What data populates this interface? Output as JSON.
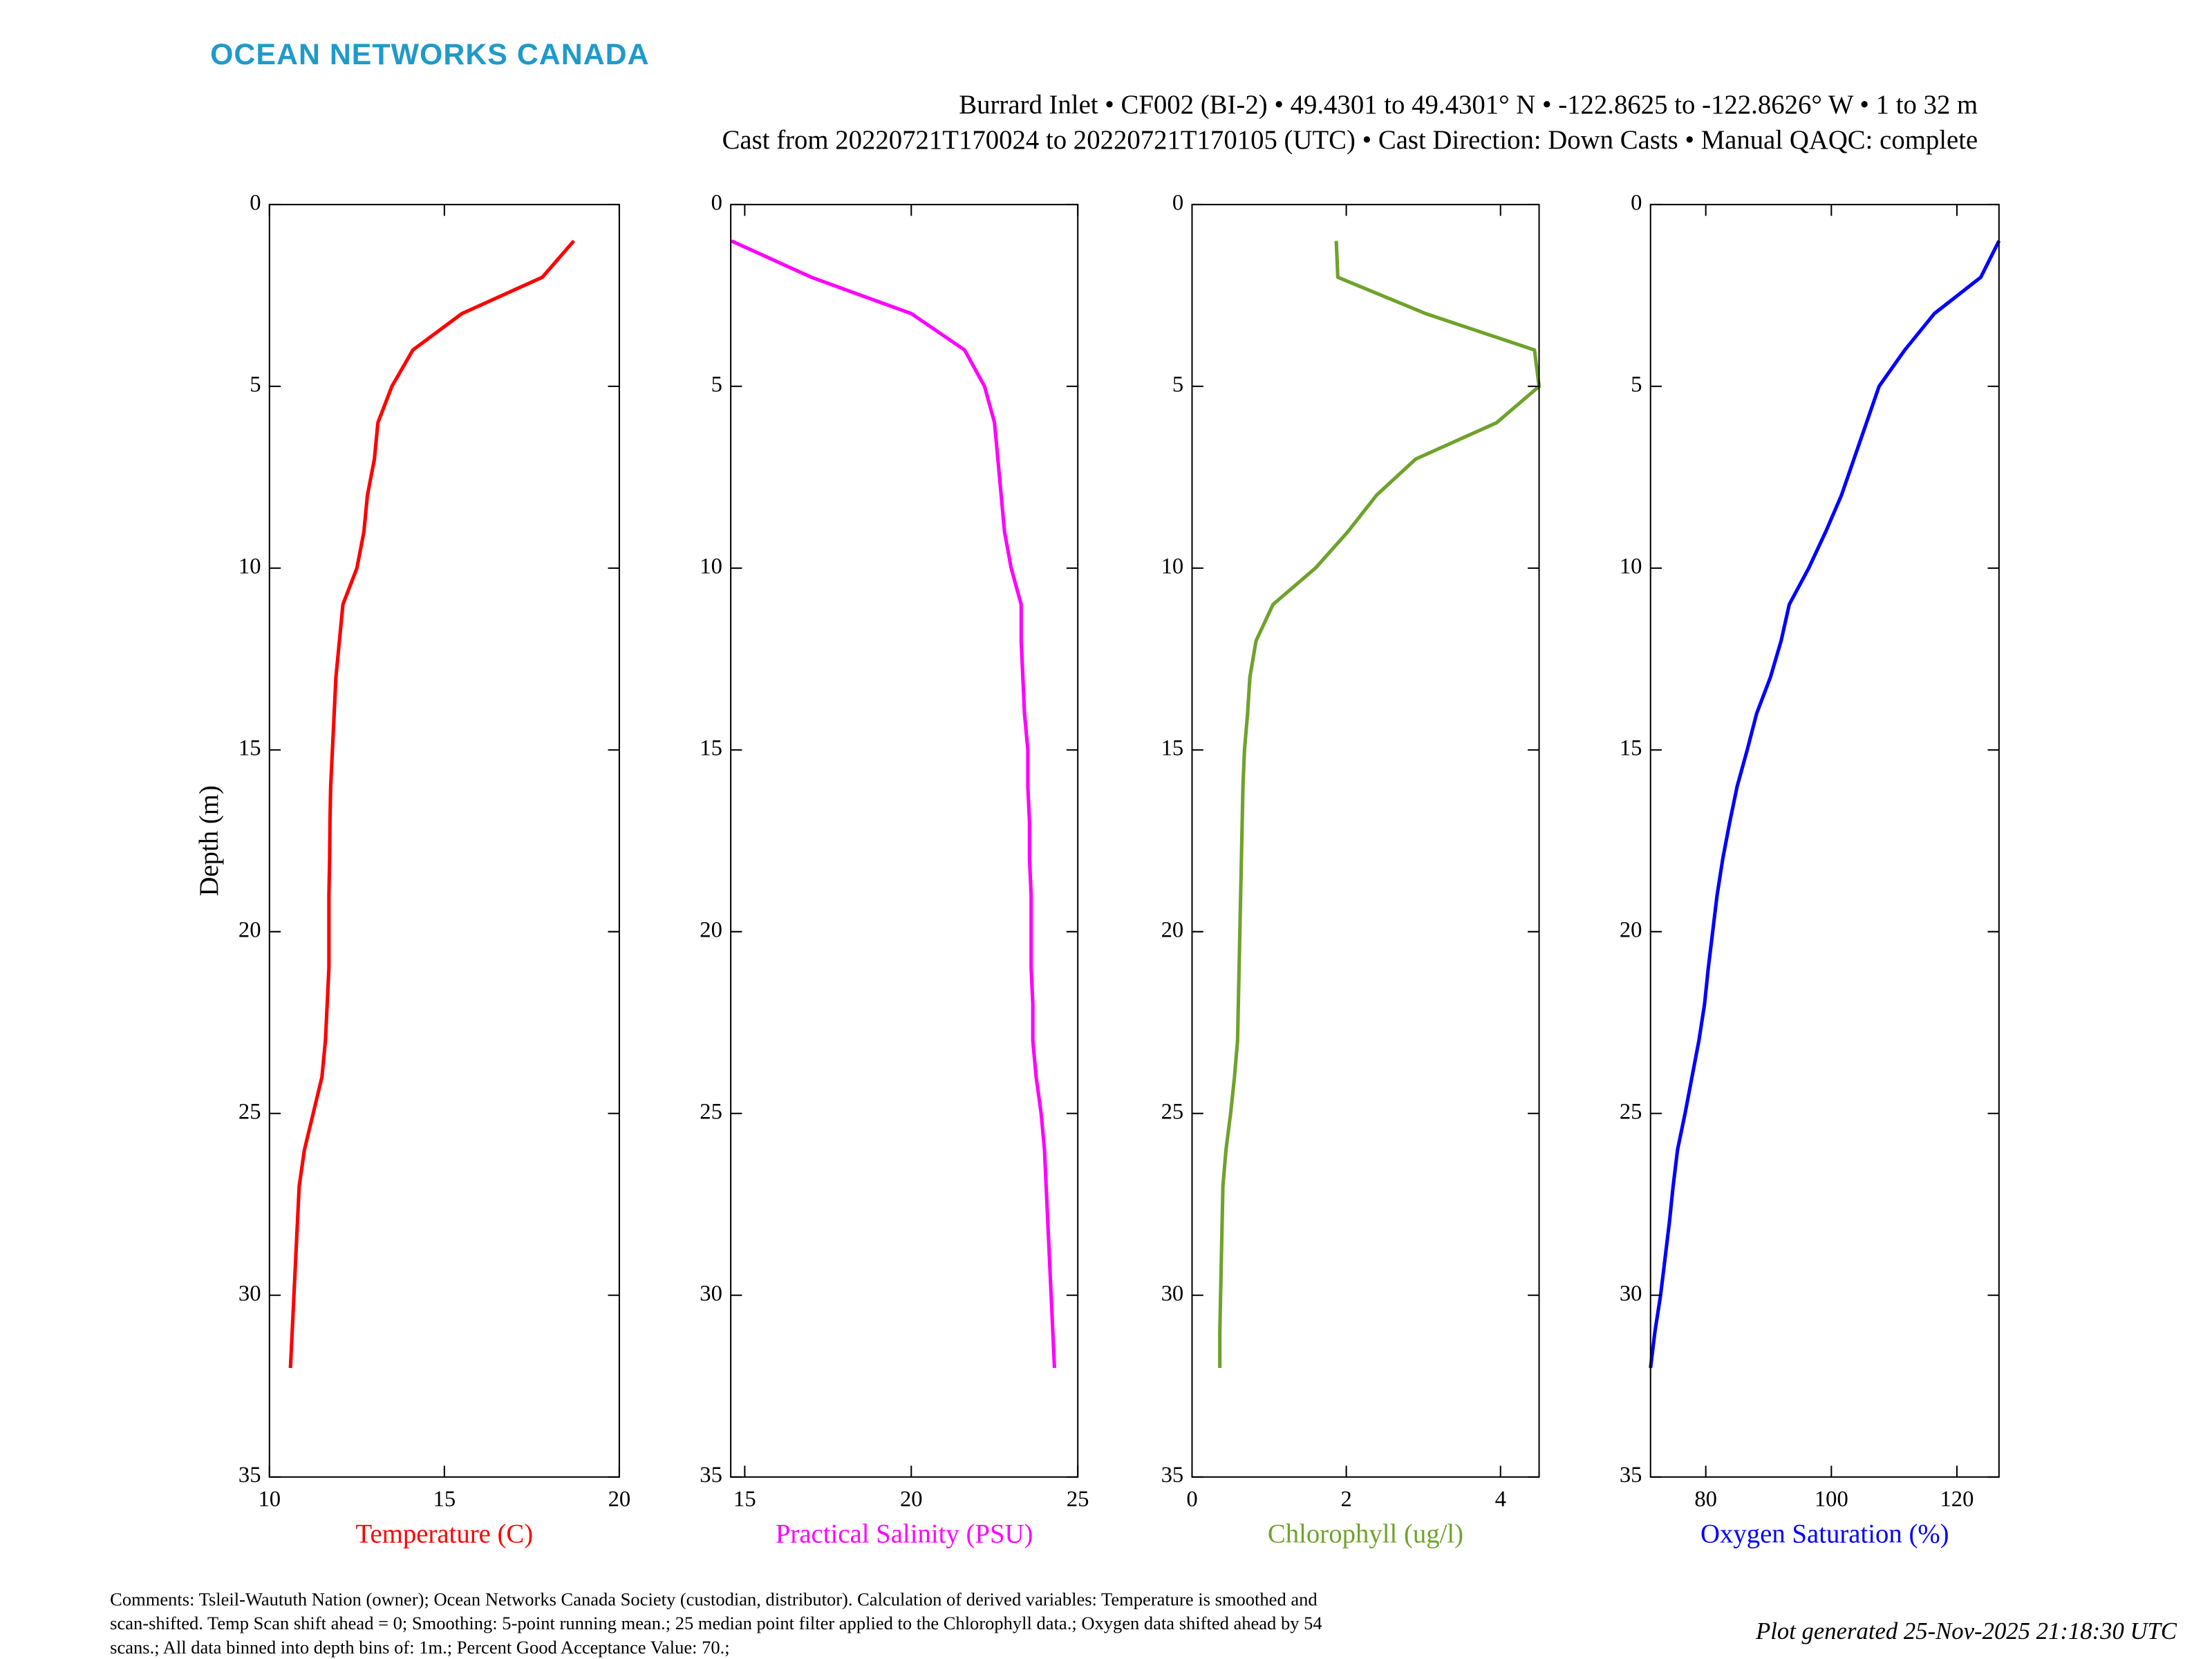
{
  "header": {
    "brand": "OCEAN NETWORKS CANADA",
    "line1": "Burrard Inlet • CF002 (BI-2) • 49.4301 to 49.4301° N • -122.8625 to -122.8626° W • 1 to 32 m",
    "line2": "Cast from 20220721T170024 to 20220721T170105 (UTC) • Cast Direction: Down Casts • Manual QAQC: complete"
  },
  "footer": {
    "comments": [
      "Comments: Tsleil-Waututh Nation (owner); Ocean Networks Canada Society (custodian, distributor). Calculation of derived variables: Temperature is smoothed and",
      "scan-shifted. Temp Scan shift ahead = 0; Smoothing: 5-point running mean.; 25 median point filter applied to the Chlorophyll data.; Oxygen data shifted ahead by 54",
      "scans.; All data binned into depth bins of: 1m.; Percent Good Acceptance Value: 70.;"
    ],
    "generated": "Plot generated 25-Nov-2025 21:18:30 UTC"
  },
  "chart_data": [
    {
      "type": "line",
      "xlabel": "Temperature (C)",
      "ylabel": "Depth (m)",
      "color": "#ff0000",
      "y_inverted": true,
      "xlim": [
        10,
        20
      ],
      "xticks": [
        10,
        15,
        20
      ],
      "ylim": [
        0,
        35
      ],
      "yticks": [
        0,
        5,
        10,
        15,
        20,
        25,
        30,
        35
      ],
      "depth": [
        1,
        2,
        3,
        4,
        5,
        6,
        7,
        8,
        9,
        10,
        11,
        12,
        13,
        14,
        15,
        16,
        17,
        18,
        19,
        20,
        21,
        22,
        23,
        24,
        25,
        26,
        27,
        28,
        29,
        30,
        31,
        32
      ],
      "values": [
        18.7,
        17.8,
        15.5,
        14.1,
        13.5,
        13.1,
        13.0,
        12.8,
        12.7,
        12.5,
        12.1,
        12.0,
        11.9,
        11.85,
        11.8,
        11.75,
        11.73,
        11.72,
        11.7,
        11.7,
        11.7,
        11.65,
        11.6,
        11.5,
        11.25,
        11.0,
        10.85,
        10.8,
        10.75,
        10.7,
        10.65,
        10.6
      ]
    },
    {
      "type": "line",
      "xlabel": "Practical Salinity (PSU)",
      "color": "#ff00ff",
      "y_inverted": true,
      "xlim": [
        14.58,
        25
      ],
      "xticks": [
        15,
        20,
        25
      ],
      "ylim": [
        0,
        35
      ],
      "yticks": [
        0,
        5,
        10,
        15,
        20,
        25,
        30,
        35
      ],
      "depth": [
        1,
        2,
        3,
        4,
        5,
        6,
        7,
        8,
        9,
        10,
        11,
        12,
        13,
        14,
        15,
        16,
        17,
        18,
        19,
        20,
        21,
        22,
        23,
        24,
        25,
        26,
        27,
        28,
        29,
        30,
        31,
        32
      ],
      "values": [
        14.6,
        17.0,
        20.0,
        21.6,
        22.2,
        22.5,
        22.6,
        22.7,
        22.8,
        23.0,
        23.3,
        23.3,
        23.35,
        23.4,
        23.5,
        23.5,
        23.55,
        23.55,
        23.6,
        23.6,
        23.6,
        23.65,
        23.65,
        23.75,
        23.9,
        24.0,
        24.05,
        24.1,
        24.15,
        24.2,
        24.25,
        24.3
      ]
    },
    {
      "type": "line",
      "xlabel": "Chlorophyll (ug/l)",
      "color": "#6fa22c",
      "y_inverted": true,
      "xlim": [
        0,
        4.5
      ],
      "xticks": [
        0,
        2,
        4
      ],
      "ylim": [
        0,
        35
      ],
      "yticks": [
        0,
        5,
        10,
        15,
        20,
        25,
        30,
        35
      ],
      "depth": [
        1,
        2,
        3,
        4,
        5,
        6,
        7,
        8,
        9,
        10,
        11,
        12,
        13,
        14,
        15,
        16,
        17,
        18,
        19,
        20,
        21,
        22,
        23,
        24,
        25,
        26,
        27,
        28,
        29,
        30,
        31,
        32
      ],
      "values": [
        1.87,
        1.89,
        3.03,
        4.44,
        4.5,
        3.95,
        2.9,
        2.39,
        2.02,
        1.6,
        1.05,
        0.83,
        0.75,
        0.72,
        0.68,
        0.66,
        0.65,
        0.64,
        0.63,
        0.62,
        0.61,
        0.6,
        0.59,
        0.55,
        0.5,
        0.44,
        0.4,
        0.39,
        0.38,
        0.37,
        0.36,
        0.36
      ]
    },
    {
      "type": "line",
      "xlabel": "Oxygen Saturation (%)",
      "color": "#0000ff",
      "y_inverted": true,
      "xlim": [
        71.2,
        126.7
      ],
      "xticks": [
        80,
        100,
        120
      ],
      "ylim": [
        0,
        35
      ],
      "yticks": [
        0,
        5,
        10,
        15,
        20,
        25,
        30,
        35
      ],
      "depth": [
        1,
        2,
        3,
        4,
        5,
        6,
        7,
        8,
        9,
        10,
        11,
        12,
        13,
        14,
        15,
        16,
        17,
        18,
        19,
        20,
        21,
        22,
        23,
        24,
        25,
        26,
        27,
        28,
        29,
        30,
        31,
        32
      ],
      "values": [
        126.7,
        123.8,
        116.4,
        111.7,
        107.6,
        105.6,
        103.6,
        101.6,
        99.1,
        96.4,
        93.3,
        92.0,
        90.3,
        88.1,
        86.6,
        85.0,
        83.8,
        82.7,
        81.8,
        81.1,
        80.4,
        79.8,
        78.9,
        77.8,
        76.7,
        75.5,
        74.8,
        74.2,
        73.5,
        72.8,
        71.9,
        71.2
      ]
    }
  ]
}
